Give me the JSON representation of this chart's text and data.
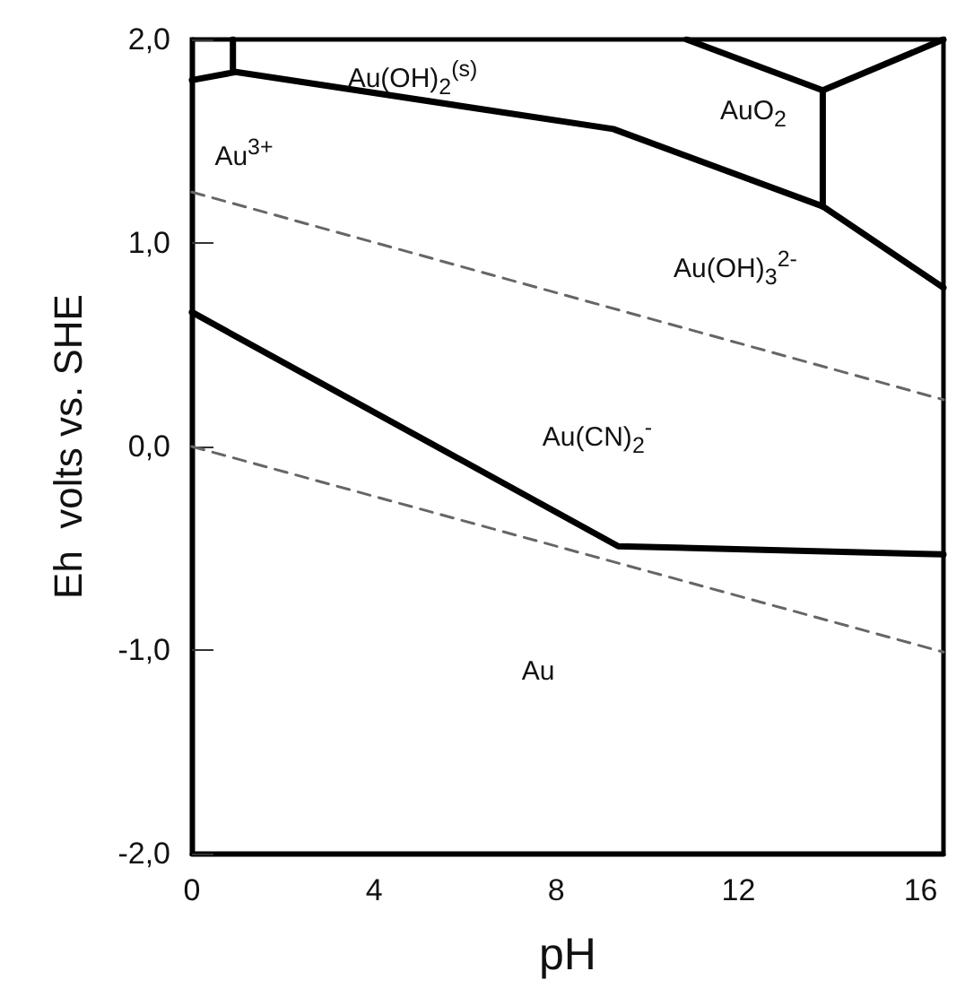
{
  "chart_data": {
    "type": "line",
    "xlabel": "pH",
    "ylabel": "Eh  volts vs. SHE",
    "xlim": [
      0,
      16.5
    ],
    "ylim": [
      -2,
      2
    ],
    "xticks": [
      0,
      4,
      8,
      12,
      16
    ],
    "yticks": [
      {
        "value": -2,
        "label": "-2,0"
      },
      {
        "value": -1,
        "label": "-1,0"
      },
      {
        "value": 0,
        "label": "0,0"
      },
      {
        "value": 1,
        "label": "1,0"
      },
      {
        "value": 2,
        "label": "2,0"
      }
    ],
    "series": [
      {
        "color": "#000000",
        "line_style": "solid",
        "x": [
          0,
          9.36,
          16.5
        ],
        "values": [
          0.66,
          -0.49,
          -0.53
        ]
      },
      {
        "color": "#000000",
        "line_style": "solid",
        "x": [
          0,
          0.96,
          9.25,
          13.85,
          16.5
        ],
        "values": [
          1.8,
          1.84,
          1.56,
          1.18,
          0.78
        ]
      },
      {
        "color": "#000000",
        "line_style": "solid",
        "x": [
          0.9,
          0.9
        ],
        "values": [
          2.0,
          1.84
        ]
      },
      {
        "color": "#000000",
        "line_style": "solid",
        "x": [
          10.86,
          13.85,
          16.5
        ],
        "values": [
          2.0,
          1.75,
          2.0
        ]
      },
      {
        "color": "#000000",
        "line_style": "solid",
        "x": [
          13.85,
          13.85
        ],
        "values": [
          1.75,
          1.18
        ]
      },
      {
        "color": "#666666",
        "line_style": "dashed",
        "x": [
          0,
          16.5
        ],
        "values": [
          1.25,
          0.23
        ]
      },
      {
        "color": "#666666",
        "line_style": "dashed",
        "x": [
          0,
          16.5
        ],
        "values": [
          0.0,
          -1.01
        ]
      }
    ],
    "annotations": [
      "Au(OH)$_{2}$$^{(s)}$",
      "AuO$_{2}$",
      "Au(OH)$_{3}$$^{2-}$",
      "Au$^{3+}$",
      "Au(CN)$_{2}$$^{-}$",
      "Au"
    ]
  }
}
